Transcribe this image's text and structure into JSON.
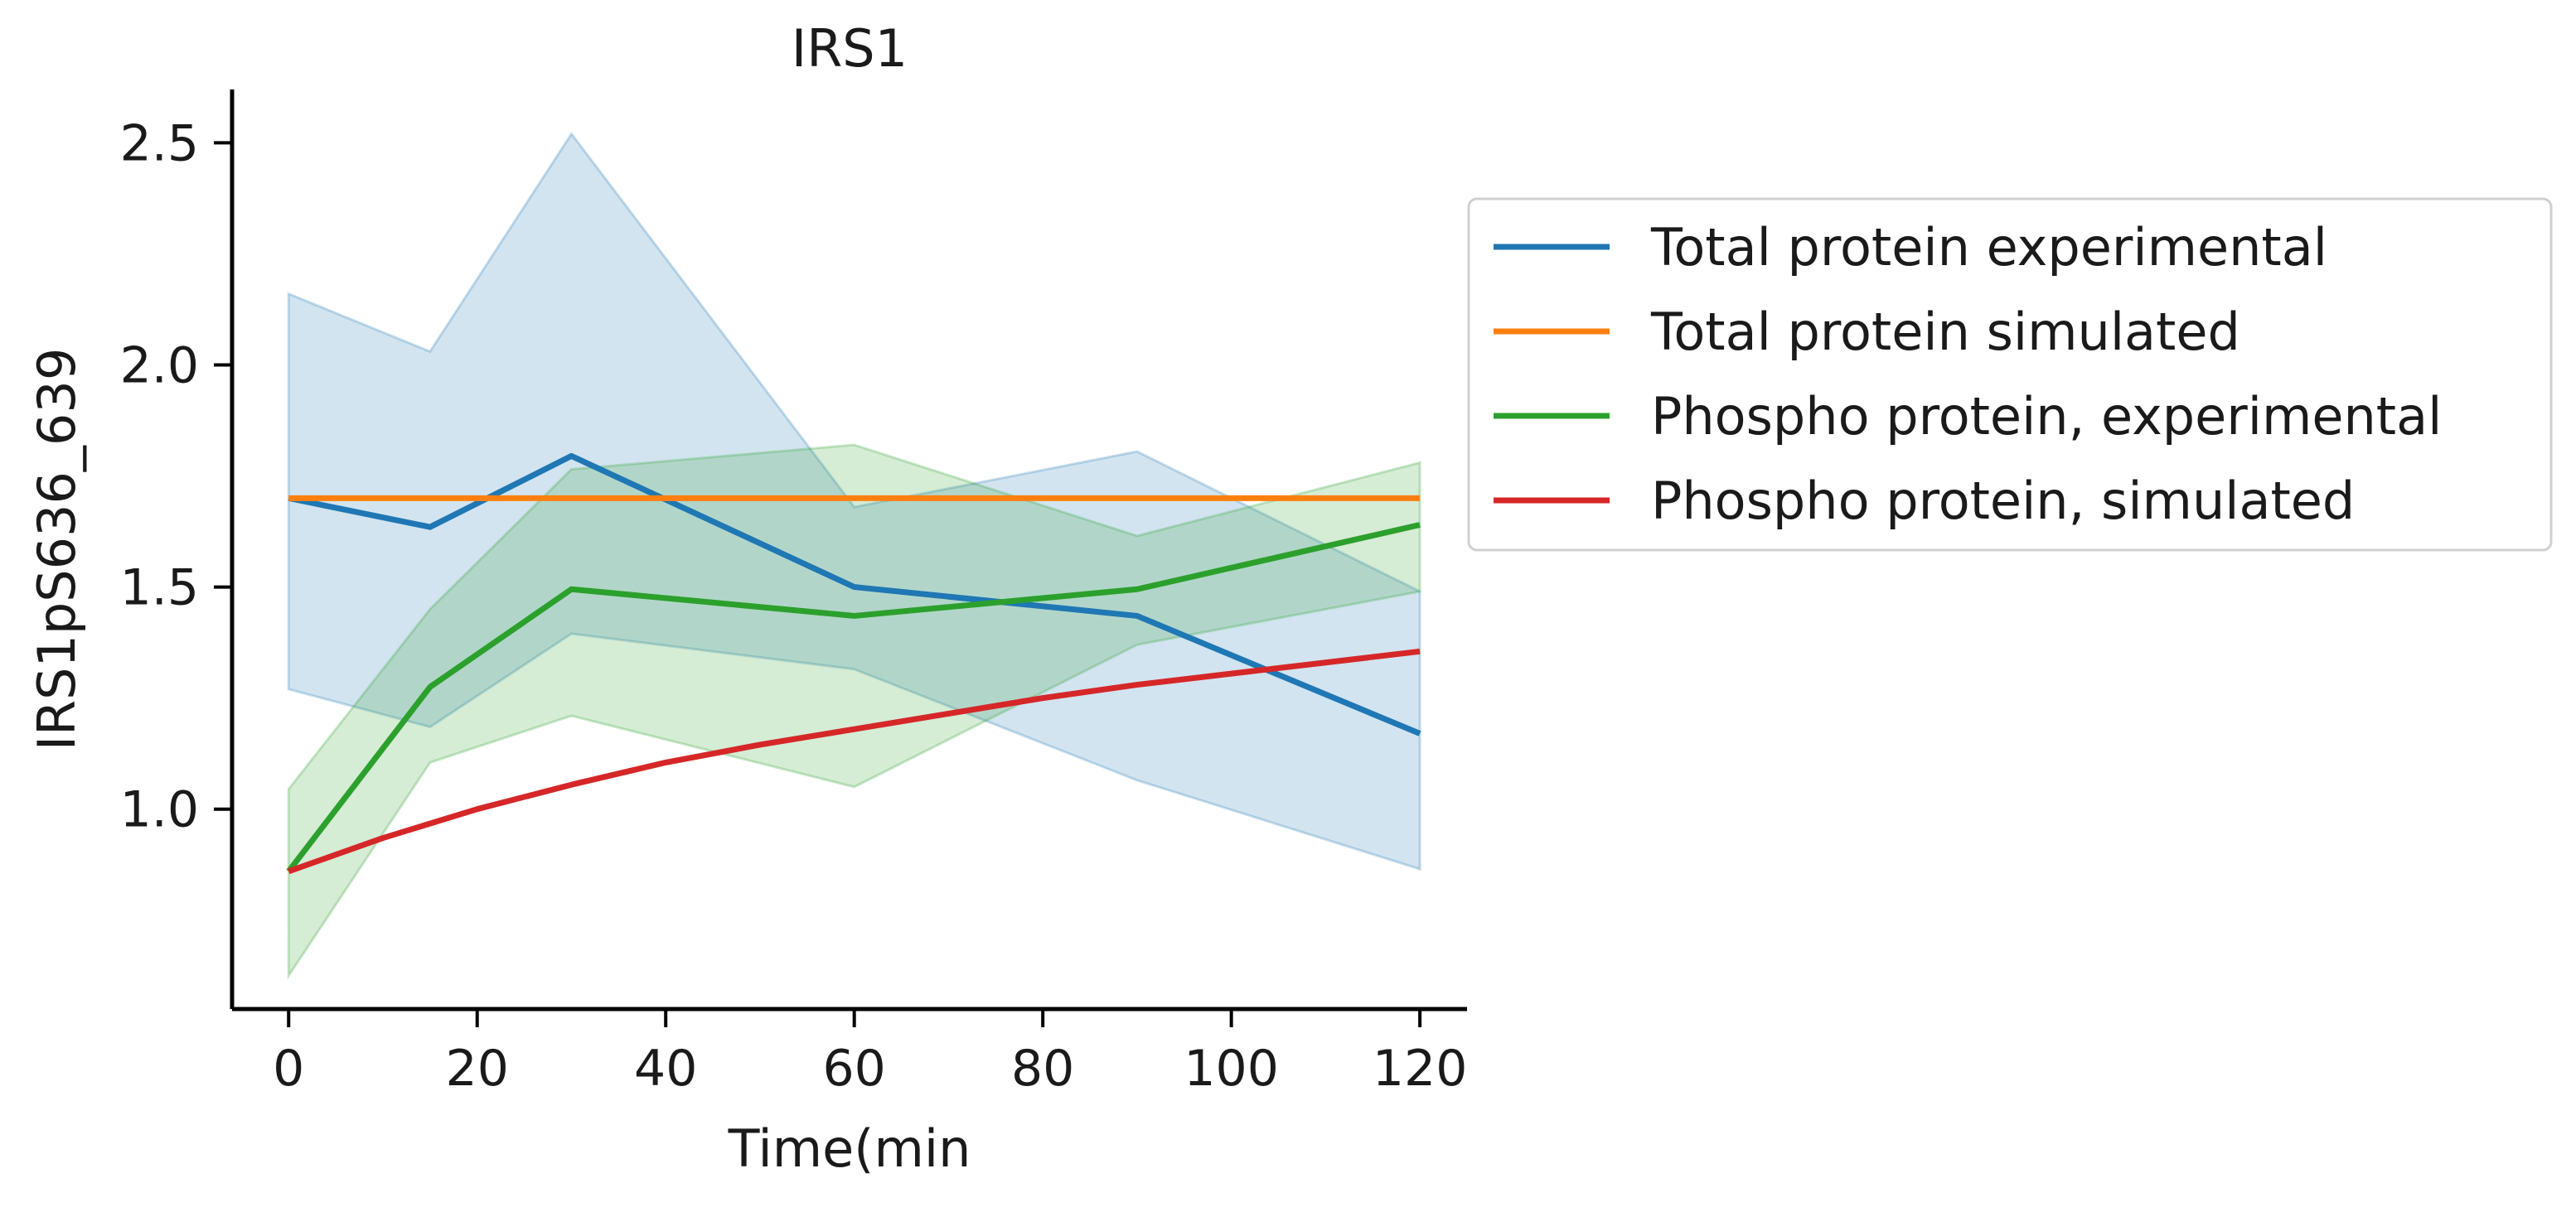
{
  "chart_data": {
    "type": "line",
    "title": "IRS1",
    "xlabel": "Time(min",
    "ylabel": "IRS1pS636_639",
    "xlim": [
      -6,
      125
    ],
    "ylim": [
      0.55,
      2.62
    ],
    "xticks": [
      0,
      20,
      40,
      60,
      80,
      100,
      120
    ],
    "yticks": [
      1.0,
      1.5,
      2.0,
      2.5
    ],
    "xtick_labels": [
      "0",
      "20",
      "40",
      "60",
      "80",
      "100",
      "120"
    ],
    "ytick_labels": [
      "1.0",
      "1.5",
      "2.0",
      "2.5"
    ],
    "grid": false,
    "legend_position": "outside-right-top",
    "series": [
      {
        "name": "Total protein experimental",
        "color": "#1f77b4",
        "x": [
          0,
          15,
          30,
          60,
          90,
          120
        ],
        "values": [
          1.7,
          1.635,
          1.795,
          1.5,
          1.435,
          1.17
        ],
        "band_upper": [
          2.16,
          2.03,
          2.52,
          1.68,
          1.805,
          1.49
        ],
        "band_lower": [
          1.27,
          1.185,
          1.395,
          1.315,
          1.065,
          0.865
        ]
      },
      {
        "name": "Total protein simulated",
        "color": "#ff7f0e",
        "x": [
          0,
          10,
          20,
          30,
          40,
          50,
          60,
          70,
          80,
          90,
          100,
          110,
          120
        ],
        "values": [
          1.7,
          1.7,
          1.7,
          1.7,
          1.7,
          1.7,
          1.7,
          1.7,
          1.7,
          1.7,
          1.7,
          1.7,
          1.7
        ]
      },
      {
        "name": "Phospho protein, experimental",
        "color": "#2ca02c",
        "x": [
          0,
          15,
          30,
          60,
          90,
          120
        ],
        "values": [
          0.86,
          1.275,
          1.495,
          1.435,
          1.495,
          1.64
        ],
        "band_upper": [
          1.045,
          1.45,
          1.765,
          1.82,
          1.615,
          1.78
        ],
        "band_lower": [
          0.625,
          1.105,
          1.21,
          1.05,
          1.37,
          1.49
        ]
      },
      {
        "name": "Phospho protein, simulated",
        "color": "#d62728",
        "x": [
          0,
          10,
          20,
          30,
          40,
          50,
          60,
          70,
          80,
          90,
          100,
          110,
          120
        ],
        "values": [
          0.86,
          0.935,
          1.0,
          1.055,
          1.105,
          1.145,
          1.18,
          1.215,
          1.25,
          1.28,
          1.305,
          1.33,
          1.355
        ]
      }
    ]
  }
}
